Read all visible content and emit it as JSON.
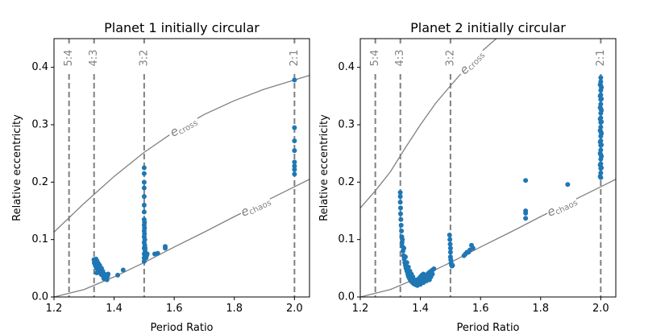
{
  "chart_data": [
    {
      "type": "scatter",
      "title": "Planet 1 initially circular",
      "xlabel": "Period Ratio",
      "ylabel": "Relative eccentricity",
      "xlim": [
        1.2,
        2.05
      ],
      "ylim": [
        0.0,
        0.45
      ],
      "xticks": [
        "1.2",
        "1.4",
        "1.6",
        "1.8",
        "2.0"
      ],
      "yticks": [
        "0.0",
        "0.1",
        "0.2",
        "0.3",
        "0.4"
      ],
      "resonances": [
        {
          "label": "5:4",
          "x": 1.25
        },
        {
          "label": "4:3",
          "x": 1.3333
        },
        {
          "label": "3:2",
          "x": 1.5
        },
        {
          "label": "2:1",
          "x": 2.0
        }
      ],
      "curves": [
        {
          "name": "e_cross",
          "label_main": "e",
          "label_sub": "cross",
          "x": [
            1.2,
            1.3,
            1.4,
            1.5,
            1.6,
            1.7,
            1.8,
            1.9,
            2.0,
            2.05
          ],
          "y": [
            0.113,
            0.163,
            0.21,
            0.252,
            0.288,
            0.318,
            0.342,
            0.362,
            0.378,
            0.386
          ],
          "label_at": 1.63
        },
        {
          "name": "e_chaos",
          "label_main": "e",
          "label_sub": "chaos",
          "x": [
            1.2,
            1.3,
            1.4,
            1.5,
            1.6,
            1.7,
            1.8,
            1.9,
            2.0,
            2.05
          ],
          "y": [
            0.0,
            0.013,
            0.035,
            0.06,
            0.087,
            0.113,
            0.14,
            0.166,
            0.192,
            0.205
          ],
          "label_at": 1.87
        }
      ],
      "series": [
        {
          "name": "simulations",
          "points": [
            [
              1.333,
              0.065
            ],
            [
              1.334,
              0.06
            ],
            [
              1.336,
              0.057
            ],
            [
              1.338,
              0.054
            ],
            [
              1.34,
              0.066
            ],
            [
              1.342,
              0.05
            ],
            [
              1.344,
              0.062
            ],
            [
              1.346,
              0.048
            ],
            [
              1.348,
              0.058
            ],
            [
              1.35,
              0.045
            ],
            [
              1.352,
              0.055
            ],
            [
              1.354,
              0.044
            ],
            [
              1.356,
              0.04
            ],
            [
              1.358,
              0.05
            ],
            [
              1.36,
              0.038
            ],
            [
              1.362,
              0.045
            ],
            [
              1.364,
              0.036
            ],
            [
              1.366,
              0.032
            ],
            [
              1.368,
              0.04
            ],
            [
              1.37,
              0.035
            ],
            [
              1.372,
              0.038
            ],
            [
              1.374,
              0.033
            ],
            [
              1.376,
              0.03
            ],
            [
              1.378,
              0.036
            ],
            [
              1.38,
              0.04
            ],
            [
              1.342,
              0.042
            ],
            [
              1.35,
              0.052
            ],
            [
              1.36,
              0.042
            ],
            [
              1.412,
              0.038
            ],
            [
              1.43,
              0.047
            ],
            [
              1.5,
              0.225
            ],
            [
              1.5,
              0.215
            ],
            [
              1.5,
              0.2
            ],
            [
              1.5,
              0.19
            ],
            [
              1.5,
              0.175
            ],
            [
              1.5,
              0.16
            ],
            [
              1.5,
              0.148
            ],
            [
              1.5,
              0.135
            ],
            [
              1.5,
              0.125
            ],
            [
              1.5,
              0.115
            ],
            [
              1.5,
              0.105
            ],
            [
              1.5,
              0.095
            ],
            [
              1.5,
              0.085
            ],
            [
              1.5,
              0.075
            ],
            [
              1.5,
              0.068
            ],
            [
              1.5,
              0.062
            ],
            [
              1.501,
              0.13
            ],
            [
              1.501,
              0.12
            ],
            [
              1.501,
              0.11
            ],
            [
              1.502,
              0.1
            ],
            [
              1.502,
              0.09
            ],
            [
              1.503,
              0.085
            ],
            [
              1.503,
              0.08
            ],
            [
              1.504,
              0.075
            ],
            [
              1.505,
              0.07
            ],
            [
              1.506,
              0.068
            ],
            [
              1.508,
              0.072
            ],
            [
              1.51,
              0.075
            ],
            [
              1.535,
              0.075
            ],
            [
              1.545,
              0.076
            ],
            [
              1.57,
              0.085
            ],
            [
              1.57,
              0.088
            ],
            [
              2.0,
              0.395
            ],
            [
              2.0,
              0.378
            ],
            [
              2.0,
              0.295
            ],
            [
              2.0,
              0.272
            ],
            [
              2.0,
              0.255
            ],
            [
              2.0,
              0.235
            ],
            [
              2.0,
              0.228
            ],
            [
              2.0,
              0.222
            ],
            [
              2.0,
              0.214
            ]
          ]
        }
      ]
    },
    {
      "type": "scatter",
      "title": "Planet 2 initially circular",
      "xlabel": "Period Ratio",
      "ylabel": "Relative eccentricity",
      "xlim": [
        1.2,
        2.05
      ],
      "ylim": [
        0.0,
        0.45
      ],
      "xticks": [
        "1.2",
        "1.4",
        "1.6",
        "1.8",
        "2.0"
      ],
      "yticks": [
        "0.0",
        "0.1",
        "0.2",
        "0.3",
        "0.4"
      ],
      "resonances": [
        {
          "label": "5:4",
          "x": 1.25
        },
        {
          "label": "4:3",
          "x": 1.3333
        },
        {
          "label": "3:2",
          "x": 1.5
        },
        {
          "label": "2:1",
          "x": 2.0
        }
      ],
      "curves": [
        {
          "name": "e_cross",
          "label_main": "e",
          "label_sub": "cross",
          "x": [
            1.2,
            1.25,
            1.3,
            1.35,
            1.4,
            1.45,
            1.5,
            1.55,
            1.6,
            1.65,
            1.7,
            1.75
          ],
          "y": [
            0.155,
            0.185,
            0.218,
            0.26,
            0.3,
            0.337,
            0.368,
            0.398,
            0.426,
            0.449,
            0.47,
            0.49
          ],
          "label_at": 1.57
        },
        {
          "name": "e_chaos",
          "label_main": "e",
          "label_sub": "chaos",
          "x": [
            1.2,
            1.3,
            1.4,
            1.5,
            1.6,
            1.7,
            1.8,
            1.9,
            2.0,
            2.05
          ],
          "y": [
            0.0,
            0.013,
            0.035,
            0.06,
            0.087,
            0.113,
            0.14,
            0.166,
            0.192,
            0.205
          ],
          "label_at": 1.87
        }
      ],
      "series": [
        {
          "name": "simulations",
          "points": [
            [
              1.333,
              0.182
            ],
            [
              1.333,
              0.175
            ],
            [
              1.333,
              0.165
            ],
            [
              1.334,
              0.155
            ],
            [
              1.334,
              0.145
            ],
            [
              1.335,
              0.135
            ],
            [
              1.336,
              0.125
            ],
            [
              1.337,
              0.115
            ],
            [
              1.338,
              0.105
            ],
            [
              1.339,
              0.095
            ],
            [
              1.34,
              0.088
            ],
            [
              1.342,
              0.08
            ],
            [
              1.344,
              0.072
            ],
            [
              1.346,
              0.066
            ],
            [
              1.348,
              0.06
            ],
            [
              1.35,
              0.055
            ],
            [
              1.352,
              0.05
            ],
            [
              1.355,
              0.045
            ],
            [
              1.358,
              0.04
            ],
            [
              1.36,
              0.036
            ],
            [
              1.363,
              0.033
            ],
            [
              1.366,
              0.03
            ],
            [
              1.37,
              0.027
            ],
            [
              1.374,
              0.025
            ],
            [
              1.378,
              0.023
            ],
            [
              1.382,
              0.022
            ],
            [
              1.386,
              0.021
            ],
            [
              1.39,
              0.022
            ],
            [
              1.394,
              0.023
            ],
            [
              1.398,
              0.024
            ],
            [
              1.402,
              0.026
            ],
            [
              1.406,
              0.028
            ],
            [
              1.41,
              0.03
            ],
            [
              1.414,
              0.033
            ],
            [
              1.418,
              0.036
            ],
            [
              1.422,
              0.038
            ],
            [
              1.426,
              0.041
            ],
            [
              1.43,
              0.043
            ],
            [
              1.435,
              0.045
            ],
            [
              1.44,
              0.047
            ],
            [
              1.445,
              0.049
            ],
            [
              1.34,
              0.1
            ],
            [
              1.345,
              0.085
            ],
            [
              1.35,
              0.07
            ],
            [
              1.355,
              0.06
            ],
            [
              1.36,
              0.052
            ],
            [
              1.365,
              0.045
            ],
            [
              1.37,
              0.04
            ],
            [
              1.375,
              0.035
            ],
            [
              1.38,
              0.03
            ],
            [
              1.385,
              0.027
            ],
            [
              1.39,
              0.03
            ],
            [
              1.395,
              0.032
            ],
            [
              1.4,
              0.035
            ],
            [
              1.405,
              0.038
            ],
            [
              1.41,
              0.04
            ],
            [
              1.415,
              0.038
            ],
            [
              1.42,
              0.035
            ],
            [
              1.425,
              0.032
            ],
            [
              1.43,
              0.03
            ],
            [
              1.435,
              0.035
            ],
            [
              1.44,
              0.04
            ],
            [
              1.39,
              0.02
            ],
            [
              1.4,
              0.022
            ],
            [
              1.41,
              0.025
            ],
            [
              1.42,
              0.028
            ],
            [
              1.497,
              0.108
            ],
            [
              1.498,
              0.1
            ],
            [
              1.499,
              0.092
            ],
            [
              1.5,
              0.085
            ],
            [
              1.5,
              0.078
            ],
            [
              1.5,
              0.07
            ],
            [
              1.501,
              0.065
            ],
            [
              1.502,
              0.06
            ],
            [
              1.503,
              0.056
            ],
            [
              1.505,
              0.054
            ],
            [
              1.507,
              0.055
            ],
            [
              1.545,
              0.072
            ],
            [
              1.55,
              0.075
            ],
            [
              1.555,
              0.078
            ],
            [
              1.56,
              0.078
            ],
            [
              1.565,
              0.082
            ],
            [
              1.57,
              0.09
            ],
            [
              1.575,
              0.085
            ],
            [
              1.75,
              0.203
            ],
            [
              1.75,
              0.15
            ],
            [
              1.75,
              0.146
            ],
            [
              1.75,
              0.137
            ],
            [
              1.89,
              0.196
            ],
            [
              2.0,
              0.382
            ],
            [
              2.0,
              0.375
            ],
            [
              2.0,
              0.368
            ],
            [
              2.0,
              0.36
            ],
            [
              2.0,
              0.352
            ],
            [
              2.0,
              0.344
            ],
            [
              2.0,
              0.336
            ],
            [
              2.0,
              0.328
            ],
            [
              2.0,
              0.32
            ],
            [
              2.0,
              0.312
            ],
            [
              2.0,
              0.304
            ],
            [
              2.0,
              0.296
            ],
            [
              2.0,
              0.288
            ],
            [
              2.0,
              0.28
            ],
            [
              2.0,
              0.272
            ],
            [
              2.0,
              0.264
            ],
            [
              2.0,
              0.256
            ],
            [
              2.0,
              0.248
            ],
            [
              2.0,
              0.24
            ],
            [
              2.0,
              0.232
            ],
            [
              2.0,
              0.224
            ],
            [
              2.0,
              0.216
            ],
            [
              2.0,
              0.208
            ],
            [
              1.998,
              0.37
            ],
            [
              1.998,
              0.35
            ],
            [
              1.998,
              0.33
            ],
            [
              1.998,
              0.31
            ],
            [
              1.998,
              0.29
            ],
            [
              1.998,
              0.27
            ],
            [
              1.998,
              0.25
            ],
            [
              1.998,
              0.23
            ],
            [
              1.998,
              0.21
            ],
            [
              2.002,
              0.365
            ],
            [
              2.002,
              0.345
            ],
            [
              2.002,
              0.325
            ],
            [
              2.002,
              0.305
            ],
            [
              2.002,
              0.285
            ],
            [
              2.002,
              0.265
            ],
            [
              2.002,
              0.245
            ],
            [
              2.002,
              0.225
            ]
          ]
        }
      ]
    }
  ],
  "colors": {
    "points": "#1f77b4",
    "curves": "#808080",
    "resonance_lines": "#808080",
    "axes": "#000000"
  }
}
